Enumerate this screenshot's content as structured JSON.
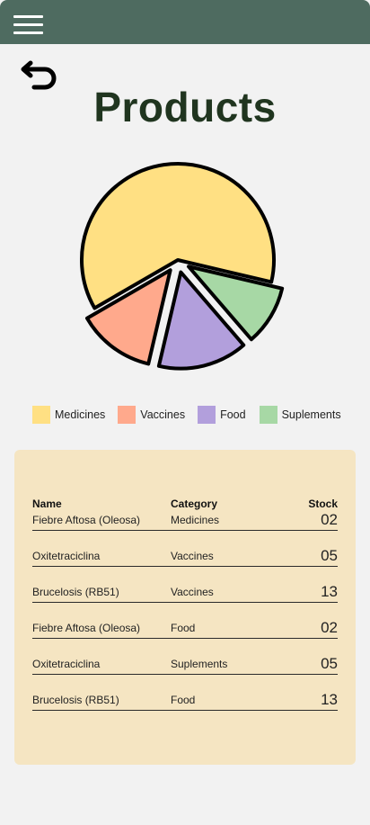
{
  "header": {
    "menu_icon": "hamburger-menu-icon",
    "bar_color": "#4e6b60"
  },
  "nav": {
    "back_icon": "undo-arrow-icon"
  },
  "page": {
    "title": "Products"
  },
  "chart_data": {
    "type": "pie",
    "slices": [
      {
        "label": "Medicines",
        "value": 62,
        "color": "#ffe083"
      },
      {
        "label": "Vaccines",
        "value": 13,
        "color": "#ffa98c"
      },
      {
        "label": "Food",
        "value": 15,
        "color": "#b29fdc"
      },
      {
        "label": "Suplements",
        "value": 10,
        "color": "#a7d8a5"
      }
    ],
    "exploded": true,
    "legend_position": "bottom"
  },
  "legend": [
    {
      "label": "Medicines",
      "color": "#ffe083"
    },
    {
      "label": "Vaccines",
      "color": "#ffa98c"
    },
    {
      "label": "Food",
      "color": "#b29fdc"
    },
    {
      "label": "Suplements",
      "color": "#a7d8a5"
    }
  ],
  "table": {
    "headers": {
      "name": "Name",
      "category": "Category",
      "stock": "Stock"
    },
    "rows": [
      {
        "name": "Fiebre Aftosa (Oleosa)",
        "category": "Medicines",
        "stock": "02"
      },
      {
        "name": "Oxitetraciclina",
        "category": "Vaccines",
        "stock": "05"
      },
      {
        "name": "Brucelosis (RB51)",
        "category": "Vaccines",
        "stock": "13"
      },
      {
        "name": "Fiebre Aftosa (Oleosa)",
        "category": "Food",
        "stock": "02"
      },
      {
        "name": "Oxitetraciclina",
        "category": "Suplements",
        "stock": "05"
      },
      {
        "name": "Brucelosis (RB51)",
        "category": "Food",
        "stock": "13"
      }
    ],
    "card_color": "#f5e5c2"
  }
}
